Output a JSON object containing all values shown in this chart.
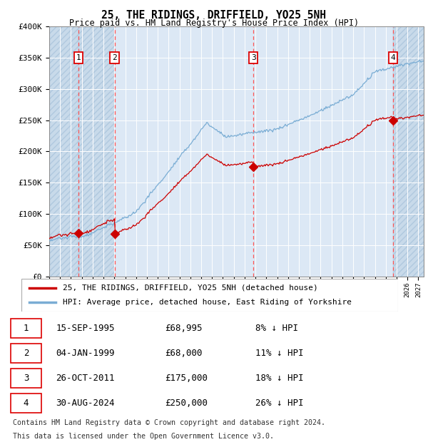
{
  "title": "25, THE RIDINGS, DRIFFIELD, YO25 5NH",
  "subtitle": "Price paid vs. HM Land Registry's House Price Index (HPI)",
  "ylim": [
    0,
    400000
  ],
  "yticks": [
    0,
    50000,
    100000,
    150000,
    200000,
    250000,
    300000,
    350000,
    400000
  ],
  "ytick_labels": [
    "£0",
    "£50K",
    "£100K",
    "£150K",
    "£200K",
    "£250K",
    "£300K",
    "£350K",
    "£400K"
  ],
  "xlim_start": 1993.0,
  "xlim_end": 2027.5,
  "purchases": [
    {
      "year": 1995.708,
      "price": 68995,
      "label": "1"
    },
    {
      "year": 1999.017,
      "price": 68000,
      "label": "2"
    },
    {
      "year": 2011.814,
      "price": 175000,
      "label": "3"
    },
    {
      "year": 2024.664,
      "price": 250000,
      "label": "4"
    }
  ],
  "table_rows": [
    [
      "1",
      "15-SEP-1995",
      "£68,995",
      "8% ↓ HPI"
    ],
    [
      "2",
      "04-JAN-1999",
      "£68,000",
      "11% ↓ HPI"
    ],
    [
      "3",
      "26-OCT-2011",
      "£175,000",
      "18% ↓ HPI"
    ],
    [
      "4",
      "30-AUG-2024",
      "£250,000",
      "26% ↓ HPI"
    ]
  ],
  "legend_line1": "25, THE RIDINGS, DRIFFIELD, YO25 5NH (detached house)",
  "legend_line2": "HPI: Average price, detached house, East Riding of Yorkshire",
  "footer1": "Contains HM Land Registry data © Crown copyright and database right 2024.",
  "footer2": "This data is licensed under the Open Government Licence v3.0.",
  "hpi_color": "#7aadd4",
  "price_color": "#cc0000",
  "dashed_line_color": "#ff5555",
  "number_box_color": "#dd0000",
  "bg_color": "#dce8f5"
}
